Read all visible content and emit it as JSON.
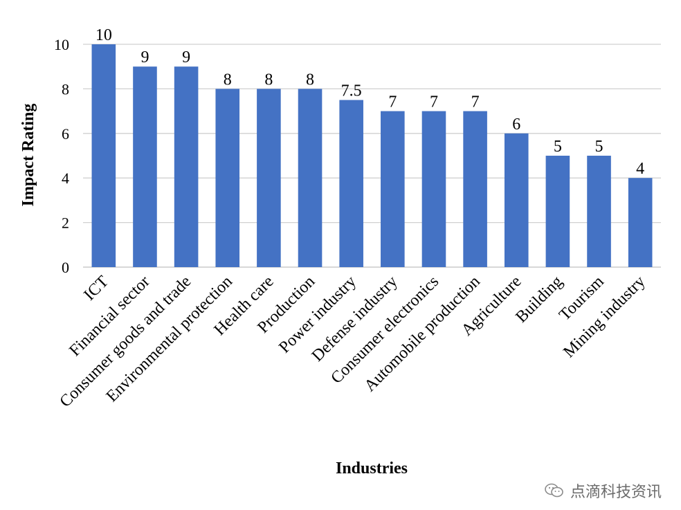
{
  "chart_data": {
    "type": "bar",
    "categories": [
      "ICT",
      "Financial sector",
      "Consumer goods and trade",
      "Environmental protection",
      "Health care",
      "Production",
      "Power industry",
      "Defense industry",
      "Consumer electronics",
      "Automobile production",
      "Agriculture",
      "Building",
      "Tourism",
      "Mining industry"
    ],
    "values": [
      10,
      9,
      9,
      8,
      8,
      8,
      7.5,
      7,
      7,
      7,
      6,
      5,
      5,
      4
    ],
    "data_labels": [
      "10",
      "9",
      "9",
      "8",
      "8",
      "8",
      "7.5",
      "7",
      "7",
      "7",
      "6",
      "5",
      "5",
      "4"
    ],
    "title": "",
    "xlabel": "Industries",
    "ylabel": "Impact Rating",
    "ylim": [
      0,
      10
    ],
    "yticks": [
      "0",
      "2",
      "4",
      "6",
      "8",
      "10"
    ],
    "grid": true,
    "bar_color": "#4472C4",
    "grid_color": "#d0d0d0"
  },
  "watermark": {
    "text": "点滴科技资讯",
    "icon": "wechat-icon"
  }
}
